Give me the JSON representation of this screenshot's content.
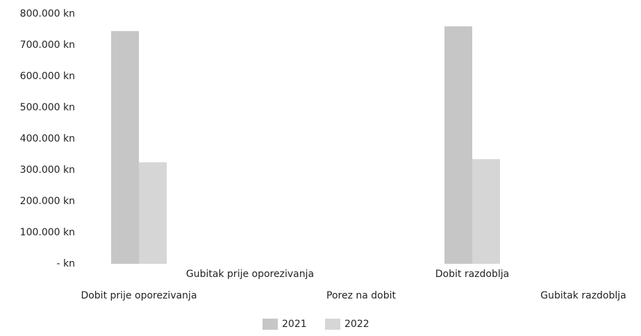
{
  "chart_data": {
    "type": "bar",
    "categories": [
      "Dobit prije oporezivanja",
      "Gubitak prije oporezivanja",
      "Porez na dobit",
      "Dobit razdoblja",
      "Gubitak razdoblja"
    ],
    "series": [
      {
        "name": "2021",
        "color": "#c6c6c6",
        "values": [
          745000,
          0,
          0,
          760000,
          0
        ]
      },
      {
        "name": "2022",
        "color": "#d6d6d6",
        "values": [
          325000,
          0,
          0,
          335000,
          0
        ]
      }
    ],
    "ylim": [
      0,
      800000
    ],
    "yticks": [
      {
        "value": 0,
        "label": "- kn"
      },
      {
        "value": 100000,
        "label": "100.000 kn"
      },
      {
        "value": 200000,
        "label": "200.000 kn"
      },
      {
        "value": 300000,
        "label": "300.000 kn"
      },
      {
        "value": 400000,
        "label": "400.000 kn"
      },
      {
        "value": 500000,
        "label": "500.000 kn"
      },
      {
        "value": 600000,
        "label": "600.000 kn"
      },
      {
        "value": 700000,
        "label": "700.000 kn"
      },
      {
        "value": 800000,
        "label": "800.000 kn"
      }
    ],
    "grid": false,
    "legend": "bottom"
  }
}
